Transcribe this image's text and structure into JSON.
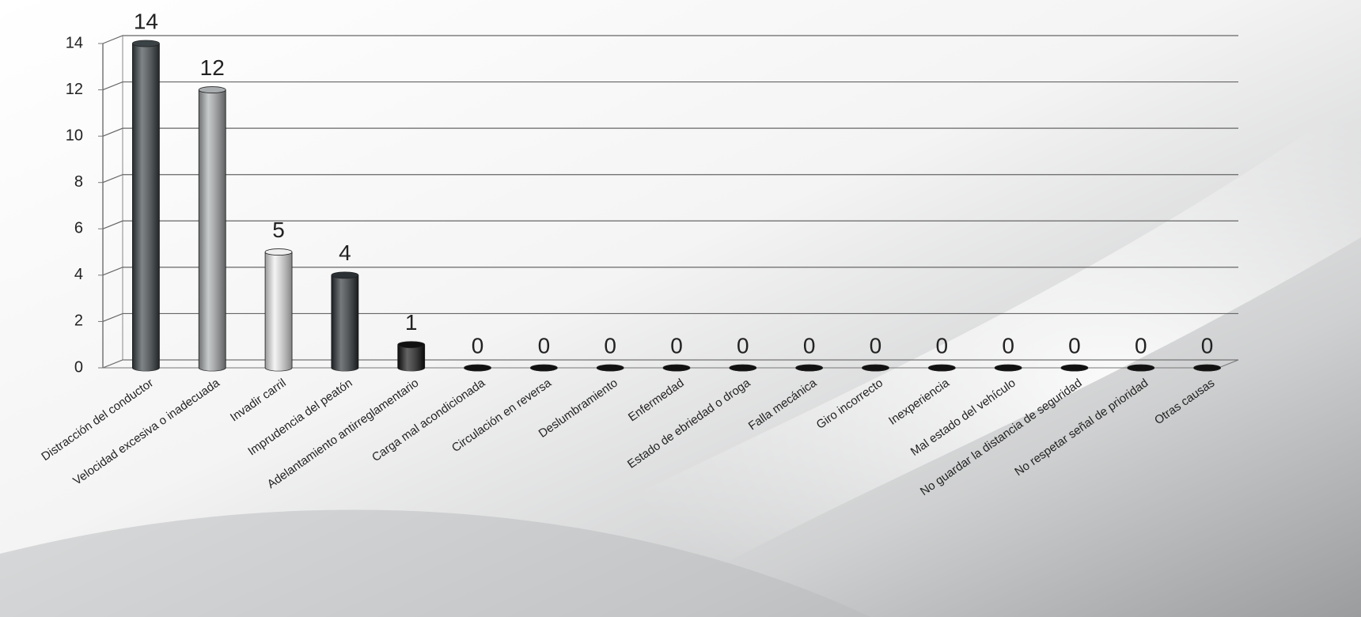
{
  "chart_data": {
    "type": "bar",
    "categories": [
      "Distracción del conductor",
      "Velocidad excesiva o inadecuada",
      "Invadir carril",
      "Imprudencia del peatón",
      "Adelantamiento antirreglamentario",
      "Carga mal acondicionada",
      "Circulación en reversa",
      "Deslumbramiento",
      "Enfermedad",
      "Estado de ebriedad o droga",
      "Falla mecánica",
      "Giro incorrecto",
      "Inexperiencia",
      "Mal estado del vehículo",
      "No guardar la distancia de seguridad",
      "No respetar señal de prioridad",
      "Otras causas"
    ],
    "values": [
      14,
      12,
      5,
      4,
      1,
      0,
      0,
      0,
      0,
      0,
      0,
      0,
      0,
      0,
      0,
      0,
      0
    ],
    "colors": [
      "#3a4246",
      "#a9adaf",
      "#eeeeee",
      "#2b3035",
      "#111111",
      "#111111",
      "#111111",
      "#111111",
      "#111111",
      "#111111",
      "#111111",
      "#111111",
      "#111111",
      "#111111",
      "#111111",
      "#111111",
      "#111111"
    ],
    "ylim": [
      0,
      14
    ],
    "yticks": [
      0,
      2,
      4,
      6,
      8,
      10,
      12,
      14
    ],
    "grid": true
  }
}
